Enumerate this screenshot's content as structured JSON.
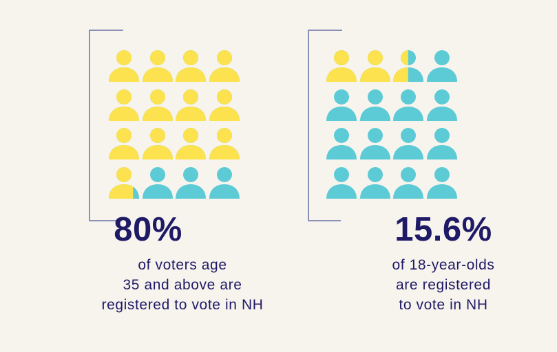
{
  "colors": {
    "background": "#f7f4ee",
    "yellow": "#fce24f",
    "teal": "#5ccbd6",
    "bracket": "#8a8fb6",
    "text": "#1f1a66"
  },
  "chart_data": [
    {
      "type": "pictograph",
      "icon": "person-icon",
      "rows": 4,
      "cols": 4,
      "total_icons": 16,
      "value_percent": 80,
      "value_label": "80%",
      "highlight_color": "#fce24f",
      "base_color": "#5ccbd6",
      "caption_lines": [
        "of voters age",
        "35 and above are",
        "registered to vote in NH"
      ]
    },
    {
      "type": "pictograph",
      "icon": "person-icon",
      "rows": 4,
      "cols": 4,
      "total_icons": 16,
      "value_percent": 15.6,
      "value_label": "15.6%",
      "highlight_color": "#fce24f",
      "base_color": "#5ccbd6",
      "caption_lines": [
        "of 18-year-olds",
        "are registered",
        "to vote in NH"
      ]
    }
  ]
}
